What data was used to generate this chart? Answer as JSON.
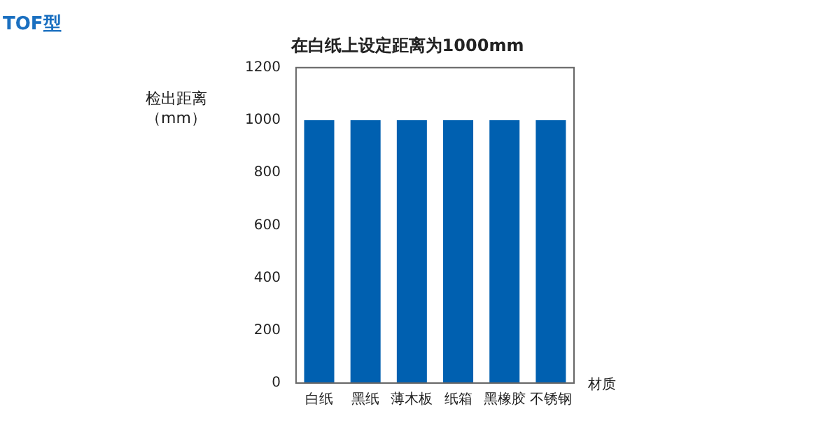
{
  "chart_data": {
    "type": "bar",
    "title": "在白纸上设定距离为1000mm",
    "subtitle": "TOF型",
    "ylabel": "检出距离（mm）",
    "xlabel": "材质",
    "categories": [
      "白纸",
      "黑纸",
      "薄木板",
      "纸箱",
      "黑橡胶",
      "不锈钢"
    ],
    "values": [
      1000,
      1000,
      1000,
      1000,
      1000,
      1000
    ],
    "color": "#0060b0",
    "ylim": [
      0,
      1200
    ],
    "yticks": [
      0,
      200,
      400,
      600,
      800,
      1000,
      1200
    ],
    "grid": false,
    "legend": false
  }
}
